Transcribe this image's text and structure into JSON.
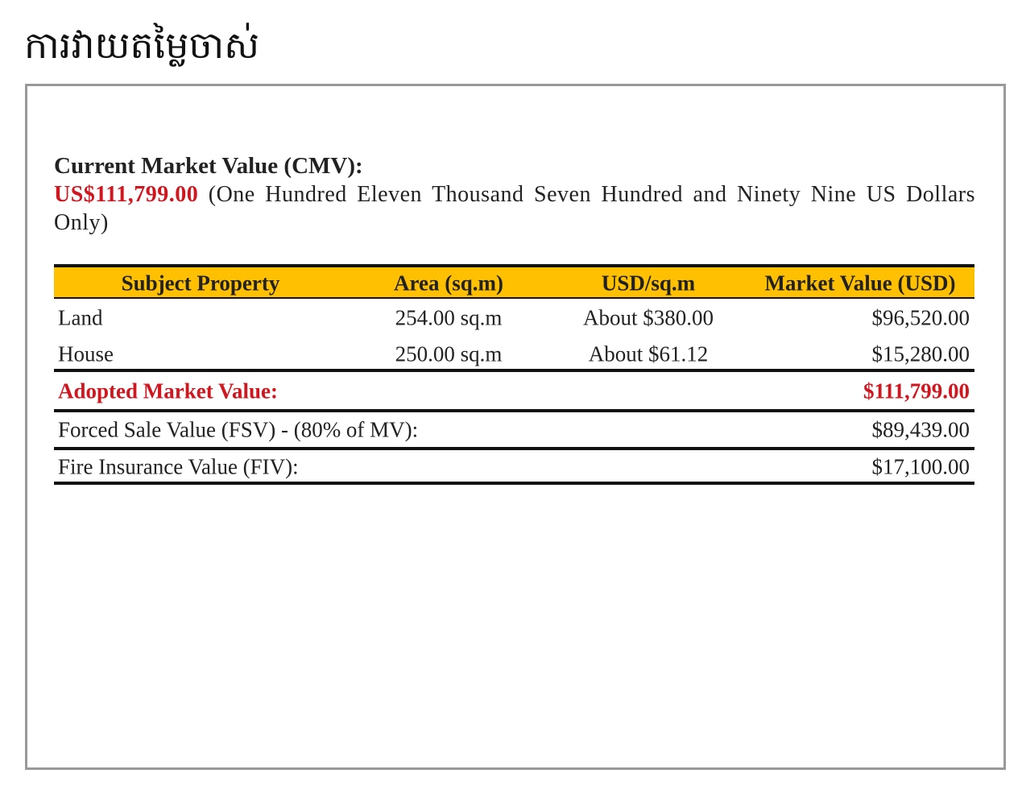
{
  "header": {
    "title": "ការវាយតម្លៃចាស់"
  },
  "document": {
    "cmv_label": "Current Market Value (CMV):",
    "cmv_amount": "US$111,799.00",
    "cmv_words": "(One Hundred Eleven Thousand Seven Hundred and Ninety Nine US Dollars Only)",
    "table": {
      "columns": [
        "Subject Property",
        "Area (sq.m)",
        "USD/sq.m",
        "Market Value (USD)"
      ],
      "rows": [
        [
          "Land",
          "254.00 sq.m",
          "About $380.00",
          "$96,520.00"
        ],
        [
          "House",
          "250.00 sq.m",
          "About $61.12",
          "$15,280.00"
        ]
      ],
      "adopted": {
        "label": "Adopted Market Value:",
        "value": "$111,799.00"
      },
      "summary": [
        {
          "label": "Forced Sale Value (FSV) - (80% of MV):",
          "value": "$89,439.00"
        },
        {
          "label": "Fire Insurance Value (FIV):",
          "value": "$17,100.00"
        }
      ]
    }
  }
}
